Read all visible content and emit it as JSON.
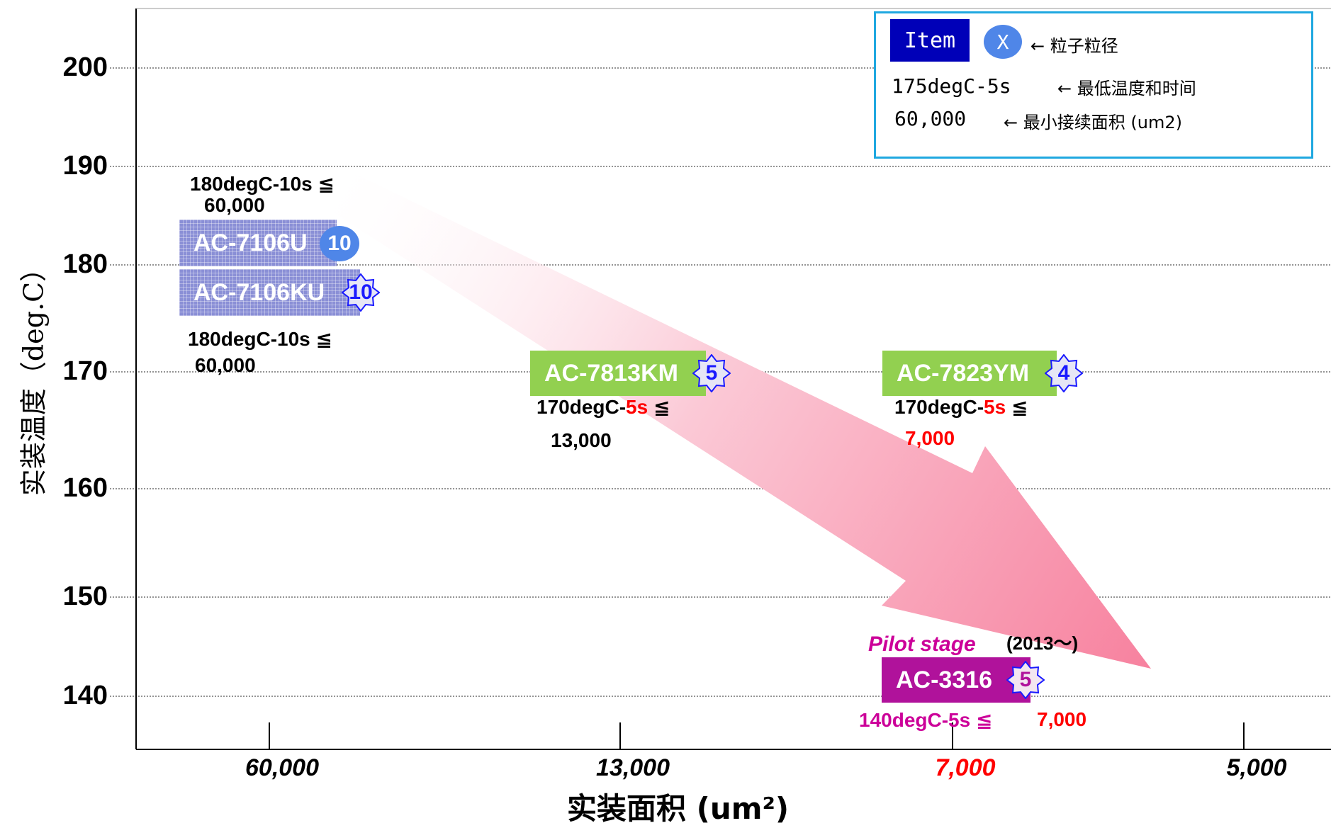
{
  "chart_data": {
    "type": "scatter",
    "xlabel": "实装面积 (um²)",
    "ylabel": "实装温度（deg.C）",
    "x_categories": [
      {
        "label": "60,000",
        "color": "#000000"
      },
      {
        "label": "13,000",
        "color": "#000000"
      },
      {
        "label": "7,000",
        "color": "#ff0000"
      },
      {
        "label": "5,000",
        "color": "#000000"
      }
    ],
    "yticks": [
      140,
      150,
      160,
      170,
      180,
      190,
      200
    ],
    "ylim": [
      135,
      205
    ],
    "grid": "horizontal-dotted",
    "legend": {
      "position": "top-right",
      "item_label": "Item",
      "particle_symbol": "X",
      "particle_desc": "← 粒子粒径",
      "temp_example": "175degC-5s",
      "temp_desc": "← 最低温度和时间",
      "area_example": "60,000",
      "area_desc": "← 最小接续面积 (um2)"
    },
    "products": [
      {
        "name": "AC-7106U",
        "particle": "10",
        "temp": 182,
        "area": "60,000",
        "style": "grid",
        "badge": "circle"
      },
      {
        "name": "AC-7106KU",
        "particle": "10",
        "temp": 178,
        "area": "60,000",
        "style": "grid",
        "badge": "star"
      },
      {
        "name": "AC-7813KM",
        "particle": "5",
        "temp": 170,
        "area": "13,000",
        "style": "green",
        "badge": "star"
      },
      {
        "name": "AC-7823YM",
        "particle": "4",
        "temp": 170,
        "area": "7,000",
        "style": "green",
        "badge": "star"
      },
      {
        "name": "AC-3316",
        "particle": "5",
        "temp": 140,
        "area": "7,000",
        "style": "purple",
        "badge": "star"
      }
    ],
    "annotations": {
      "u_cond": "180degC-10s ≦",
      "u_area": "60,000",
      "ku_cond": "180degC-10s ≦",
      "ku_area": "60,000",
      "km_cond_a": "170degC-",
      "km_cond_b": "5s",
      "km_cond_c": " ≦",
      "km_area": "13,000",
      "ym_cond_a": "170degC-",
      "ym_cond_b": "5s",
      "ym_cond_c": " ≦",
      "ym_area": "7,000",
      "pilot": "Pilot stage",
      "year": "(2013～)",
      "p_cond": "140degC-5s ≦",
      "p_area": "7,000"
    },
    "trend_arrow": "pink-gradient-downward"
  }
}
